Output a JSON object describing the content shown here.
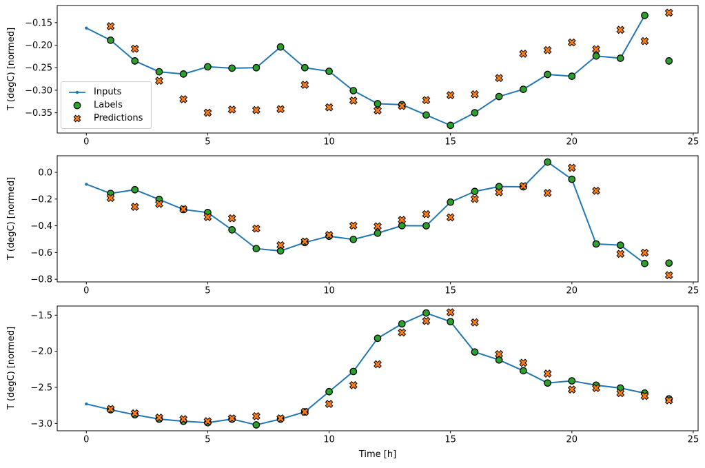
{
  "figure": {
    "background": "#ffffff"
  },
  "colors": {
    "inputs": "#1f77b4",
    "labels": "#2ca02c",
    "predictions": "#ff7f0e",
    "marker_edge": "#000000",
    "axes": "#000000",
    "legend_border": "#cccccc"
  },
  "xlabel": "Time [h]",
  "ylabel": "T (degC) [normed]",
  "legend": {
    "items": [
      {
        "label": "Inputs",
        "icon": "line-dot-icon"
      },
      {
        "label": "Labels",
        "icon": "circle-marker-icon"
      },
      {
        "label": "Predictions",
        "icon": "x-marker-icon"
      }
    ]
  },
  "chart_data": [
    {
      "type": "line",
      "title": "",
      "xlabel": "",
      "ylabel": "T (degC) [normed]",
      "xlim": [
        -1.2,
        25.2
      ],
      "ylim": [
        -0.395,
        -0.112
      ],
      "xticks": [
        0,
        5,
        10,
        15,
        20,
        25
      ],
      "xtick_labels": [
        "0",
        "5",
        "10",
        "15",
        "20",
        "25"
      ],
      "yticks": [
        -0.15,
        -0.2,
        -0.25,
        -0.3,
        -0.35
      ],
      "ytick_labels": [
        "−0.15",
        "−0.20",
        "−0.25",
        "−0.30",
        "−0.35"
      ],
      "legend_visible": true,
      "x_inputs": [
        0,
        1,
        2,
        3,
        4,
        5,
        6,
        7,
        8,
        9,
        10,
        11,
        12,
        13,
        14,
        15,
        16,
        17,
        18,
        19,
        20,
        21,
        22,
        23
      ],
      "x_targets": [
        1,
        2,
        3,
        4,
        5,
        6,
        7,
        8,
        9,
        10,
        11,
        12,
        13,
        14,
        15,
        16,
        17,
        18,
        19,
        20,
        21,
        22,
        23,
        24
      ],
      "series": [
        {
          "name": "Inputs",
          "type": "line+marker",
          "y": [
            -0.162,
            -0.189,
            -0.235,
            -0.259,
            -0.264,
            -0.248,
            -0.251,
            -0.25,
            -0.204,
            -0.25,
            -0.258,
            -0.301,
            -0.33,
            -0.332,
            -0.355,
            -0.378,
            -0.35,
            -0.314,
            -0.298,
            -0.265,
            -0.269,
            -0.224,
            -0.229,
            -0.134
          ]
        },
        {
          "name": "Labels",
          "type": "scatter-circle",
          "y": [
            -0.189,
            -0.235,
            -0.259,
            -0.264,
            -0.248,
            -0.251,
            -0.25,
            -0.204,
            -0.25,
            -0.258,
            -0.301,
            -0.33,
            -0.332,
            -0.355,
            -0.378,
            -0.35,
            -0.314,
            -0.298,
            -0.265,
            -0.269,
            -0.224,
            -0.229,
            -0.134,
            -0.235
          ]
        },
        {
          "name": "Predictions",
          "type": "scatter-X",
          "y": [
            -0.158,
            -0.208,
            -0.279,
            -0.32,
            -0.35,
            -0.343,
            -0.344,
            -0.342,
            -0.288,
            -0.338,
            -0.323,
            -0.345,
            -0.335,
            -0.322,
            -0.311,
            -0.309,
            -0.273,
            -0.219,
            -0.211,
            -0.194,
            -0.209,
            -0.166,
            -0.191,
            -0.128
          ]
        }
      ]
    },
    {
      "type": "line",
      "title": "",
      "xlabel": "",
      "ylabel": "T (degC) [normed]",
      "xlim": [
        -1.2,
        25.2
      ],
      "ylim": [
        -0.82,
        0.124
      ],
      "xticks": [
        0,
        5,
        10,
        15,
        20,
        25
      ],
      "xtick_labels": [
        "0",
        "5",
        "10",
        "15",
        "20",
        "25"
      ],
      "yticks": [
        0.0,
        -0.2,
        -0.4,
        -0.6,
        -0.8
      ],
      "ytick_labels": [
        "0.0",
        "−0.2",
        "−0.4",
        "−0.6",
        "−0.8"
      ],
      "legend_visible": false,
      "x_inputs": [
        0,
        1,
        2,
        3,
        4,
        5,
        6,
        7,
        8,
        9,
        10,
        11,
        12,
        13,
        14,
        15,
        16,
        17,
        18,
        19,
        20,
        21,
        22,
        23
      ],
      "x_targets": [
        1,
        2,
        3,
        4,
        5,
        6,
        7,
        8,
        9,
        10,
        11,
        12,
        13,
        14,
        15,
        16,
        17,
        18,
        19,
        20,
        21,
        22,
        23,
        24
      ],
      "series": [
        {
          "name": "Inputs",
          "type": "line+marker",
          "y": [
            -0.089,
            -0.158,
            -0.13,
            -0.203,
            -0.278,
            -0.301,
            -0.43,
            -0.571,
            -0.588,
            -0.525,
            -0.478,
            -0.502,
            -0.455,
            -0.399,
            -0.4,
            -0.223,
            -0.143,
            -0.107,
            -0.108,
            0.077,
            -0.052,
            -0.536,
            -0.545,
            -0.682
          ]
        },
        {
          "name": "Labels",
          "type": "scatter-circle",
          "y": [
            -0.158,
            -0.13,
            -0.203,
            -0.278,
            -0.301,
            -0.43,
            -0.571,
            -0.588,
            -0.525,
            -0.478,
            -0.502,
            -0.455,
            -0.399,
            -0.4,
            -0.223,
            -0.143,
            -0.107,
            -0.108,
            0.077,
            -0.052,
            -0.536,
            -0.545,
            -0.682,
            -0.679
          ]
        },
        {
          "name": "Predictions",
          "type": "scatter-X",
          "y": [
            -0.192,
            -0.258,
            -0.236,
            -0.275,
            -0.335,
            -0.344,
            -0.421,
            -0.545,
            -0.518,
            -0.469,
            -0.399,
            -0.404,
            -0.356,
            -0.313,
            -0.337,
            -0.199,
            -0.149,
            -0.103,
            -0.155,
            0.034,
            -0.138,
            -0.61,
            -0.602,
            -0.77
          ]
        }
      ]
    },
    {
      "type": "line",
      "title": "",
      "xlabel": "Time [h]",
      "ylabel": "T (degC) [normed]",
      "xlim": [
        -1.2,
        25.2
      ],
      "ylim": [
        -3.102,
        -1.373
      ],
      "xticks": [
        0,
        5,
        10,
        15,
        20,
        25
      ],
      "xtick_labels": [
        "0",
        "5",
        "10",
        "15",
        "20",
        "25"
      ],
      "yticks": [
        -1.5,
        -2.0,
        -2.5,
        -3.0
      ],
      "ytick_labels": [
        "−1.5",
        "−2.0",
        "−2.5",
        "−3.0"
      ],
      "legend_visible": false,
      "x_inputs": [
        0,
        1,
        2,
        3,
        4,
        5,
        6,
        7,
        8,
        9,
        10,
        11,
        12,
        13,
        14,
        15,
        16,
        17,
        18,
        19,
        20,
        21,
        22,
        23
      ],
      "x_targets": [
        1,
        2,
        3,
        4,
        5,
        6,
        7,
        8,
        9,
        10,
        11,
        12,
        13,
        14,
        15,
        16,
        17,
        18,
        19,
        20,
        21,
        22,
        23,
        24
      ],
      "series": [
        {
          "name": "Inputs",
          "type": "line+marker",
          "y": [
            -2.73,
            -2.81,
            -2.88,
            -2.94,
            -2.97,
            -2.99,
            -2.94,
            -3.02,
            -2.94,
            -2.84,
            -2.56,
            -2.28,
            -1.82,
            -1.62,
            -1.47,
            -1.59,
            -2.01,
            -2.12,
            -2.27,
            -2.44,
            -2.41,
            -2.47,
            -2.51,
            -2.58
          ]
        },
        {
          "name": "Labels",
          "type": "scatter-circle",
          "y": [
            -2.81,
            -2.88,
            -2.94,
            -2.97,
            -2.99,
            -2.94,
            -3.02,
            -2.94,
            -2.84,
            -2.56,
            -2.28,
            -1.82,
            -1.62,
            -1.47,
            -1.59,
            -2.01,
            -2.12,
            -2.27,
            -2.44,
            -2.41,
            -2.47,
            -2.51,
            -2.58,
            -2.66
          ]
        },
        {
          "name": "Predictions",
          "type": "scatter-X",
          "y": [
            -2.8,
            -2.86,
            -2.92,
            -2.94,
            -2.97,
            -2.93,
            -2.9,
            -2.93,
            -2.84,
            -2.73,
            -2.47,
            -2.18,
            -1.74,
            -1.58,
            -1.46,
            -1.6,
            -2.04,
            -2.16,
            -2.31,
            -2.53,
            -2.51,
            -2.58,
            -2.62,
            -2.68
          ]
        }
      ]
    }
  ]
}
